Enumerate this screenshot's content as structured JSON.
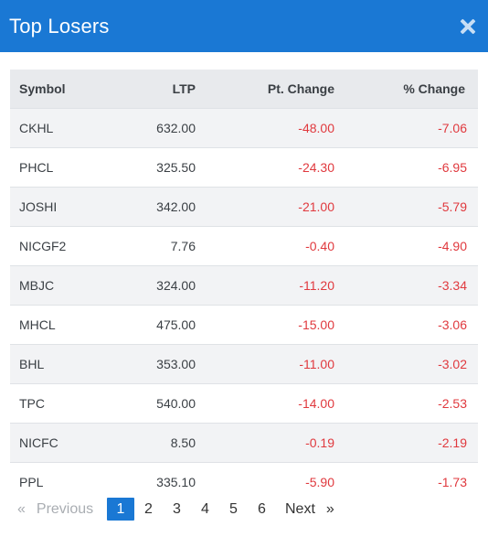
{
  "modal": {
    "title": "Top Losers"
  },
  "table": {
    "headers": {
      "symbol": "Symbol",
      "ltp": "LTP",
      "pt_change": "Pt. Change",
      "pct_change": "% Change"
    },
    "rows": [
      {
        "symbol": "CKHL",
        "ltp": "632.00",
        "pt_change": "-48.00",
        "pct_change": "-7.06"
      },
      {
        "symbol": "PHCL",
        "ltp": "325.50",
        "pt_change": "-24.30",
        "pct_change": "-6.95"
      },
      {
        "symbol": "JOSHI",
        "ltp": "342.00",
        "pt_change": "-21.00",
        "pct_change": "-5.79"
      },
      {
        "symbol": "NICGF2",
        "ltp": "7.76",
        "pt_change": "-0.40",
        "pct_change": "-4.90"
      },
      {
        "symbol": "MBJC",
        "ltp": "324.00",
        "pt_change": "-11.20",
        "pct_change": "-3.34"
      },
      {
        "symbol": "MHCL",
        "ltp": "475.00",
        "pt_change": "-15.00",
        "pct_change": "-3.06"
      },
      {
        "symbol": "BHL",
        "ltp": "353.00",
        "pt_change": "-11.00",
        "pct_change": "-3.02"
      },
      {
        "symbol": "TPC",
        "ltp": "540.00",
        "pt_change": "-14.00",
        "pct_change": "-2.53"
      },
      {
        "symbol": "NICFC",
        "ltp": "8.50",
        "pt_change": "-0.19",
        "pct_change": "-2.19"
      },
      {
        "symbol": "PPL",
        "ltp": "335.10",
        "pt_change": "-5.90",
        "pct_change": "-1.73"
      }
    ]
  },
  "pagination": {
    "prev_arrow": "«",
    "prev_label": "Previous",
    "pages": [
      "1",
      "2",
      "3",
      "4",
      "5",
      "6"
    ],
    "current_page": "1",
    "next_label": "Next",
    "next_arrow": "»"
  },
  "colors": {
    "header_bg": "#1a78d4",
    "negative": "#e0393e"
  }
}
